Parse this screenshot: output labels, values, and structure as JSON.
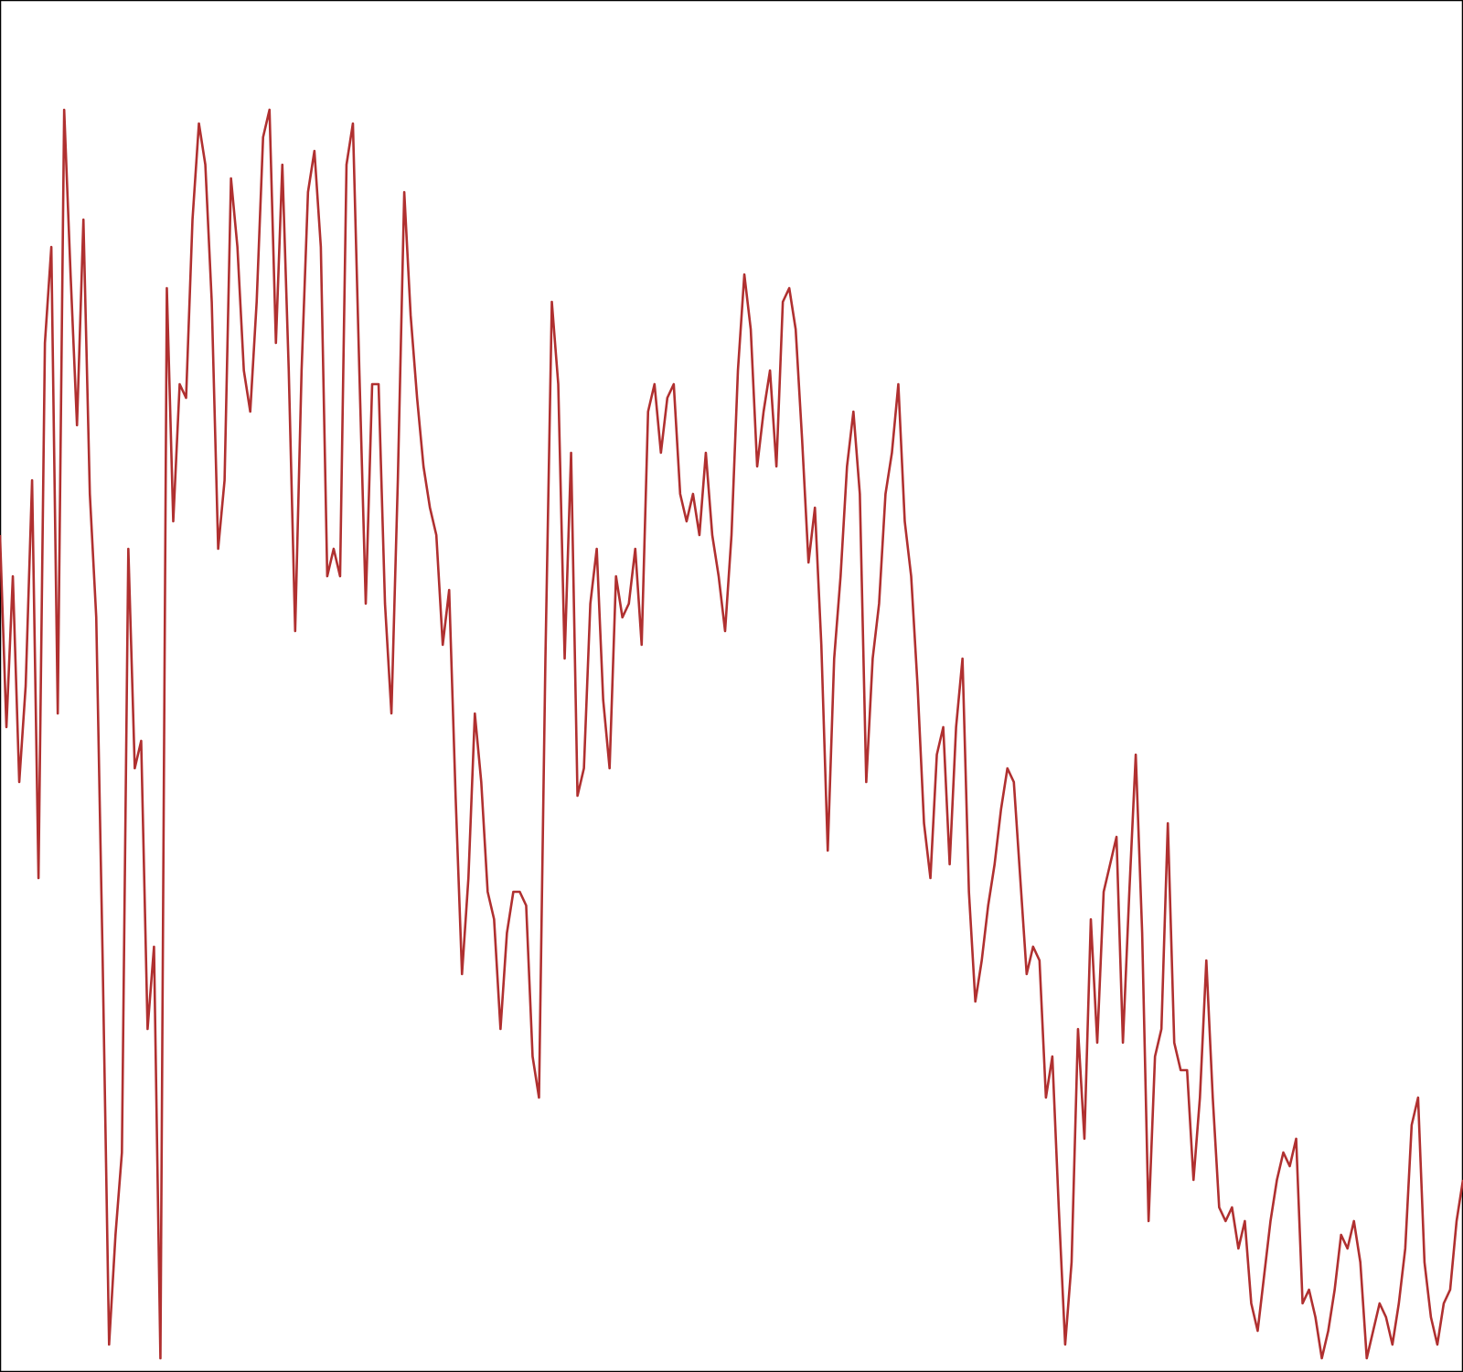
{
  "chart_data": {
    "type": "line",
    "title": "",
    "xlabel": "",
    "ylabel": "",
    "xlim": [
      0,
      700
    ],
    "ylim": [
      0,
      1
    ],
    "grid": false,
    "legend": "none",
    "series": [
      {
        "color": "#b03030",
        "values": [
          0.61,
          0.47,
          0.58,
          0.43,
          0.5,
          0.65,
          0.36,
          0.75,
          0.82,
          0.48,
          0.92,
          0.8,
          0.69,
          0.84,
          0.64,
          0.55,
          0.3,
          0.02,
          0.1,
          0.16,
          0.6,
          0.44,
          0.46,
          0.25,
          0.31,
          0.01,
          0.79,
          0.62,
          0.72,
          0.71,
          0.84,
          0.91,
          0.88,
          0.78,
          0.6,
          0.65,
          0.87,
          0.82,
          0.73,
          0.7,
          0.78,
          0.9,
          0.92,
          0.75,
          0.88,
          0.73,
          0.54,
          0.73,
          0.86,
          0.89,
          0.82,
          0.58,
          0.6,
          0.58,
          0.88,
          0.91,
          0.73,
          0.56,
          0.72,
          0.72,
          0.56,
          0.48,
          0.65,
          0.86,
          0.77,
          0.71,
          0.66,
          0.63,
          0.61,
          0.53,
          0.57,
          0.42,
          0.29,
          0.36,
          0.48,
          0.43,
          0.35,
          0.33,
          0.25,
          0.32,
          0.35,
          0.35,
          0.34,
          0.23,
          0.2,
          0.52,
          0.78,
          0.72,
          0.52,
          0.67,
          0.42,
          0.44,
          0.56,
          0.6,
          0.49,
          0.44,
          0.58,
          0.55,
          0.56,
          0.6,
          0.53,
          0.7,
          0.72,
          0.67,
          0.71,
          0.72,
          0.64,
          0.62,
          0.64,
          0.61,
          0.67,
          0.61,
          0.58,
          0.54,
          0.61,
          0.73,
          0.8,
          0.76,
          0.66,
          0.7,
          0.73,
          0.66,
          0.78,
          0.79,
          0.76,
          0.68,
          0.59,
          0.63,
          0.53,
          0.38,
          0.52,
          0.58,
          0.66,
          0.7,
          0.64,
          0.43,
          0.52,
          0.56,
          0.64,
          0.67,
          0.72,
          0.62,
          0.58,
          0.5,
          0.4,
          0.36,
          0.45,
          0.47,
          0.37,
          0.47,
          0.52,
          0.35,
          0.27,
          0.3,
          0.34,
          0.37,
          0.41,
          0.44,
          0.43,
          0.36,
          0.29,
          0.31,
          0.3,
          0.2,
          0.23,
          0.12,
          0.02,
          0.08,
          0.25,
          0.17,
          0.33,
          0.24,
          0.35,
          0.37,
          0.39,
          0.24,
          0.35,
          0.45,
          0.32,
          0.11,
          0.23,
          0.25,
          0.4,
          0.24,
          0.22,
          0.22,
          0.14,
          0.2,
          0.3,
          0.2,
          0.12,
          0.11,
          0.12,
          0.09,
          0.11,
          0.05,
          0.03,
          0.07,
          0.11,
          0.14,
          0.16,
          0.15,
          0.17,
          0.05,
          0.06,
          0.04,
          0.01,
          0.03,
          0.06,
          0.1,
          0.09,
          0.11,
          0.08,
          0.01,
          0.03,
          0.05,
          0.04,
          0.02,
          0.05,
          0.09,
          0.18,
          0.2,
          0.08,
          0.04,
          0.02,
          0.05,
          0.06,
          0.11,
          0.14
        ]
      }
    ]
  }
}
